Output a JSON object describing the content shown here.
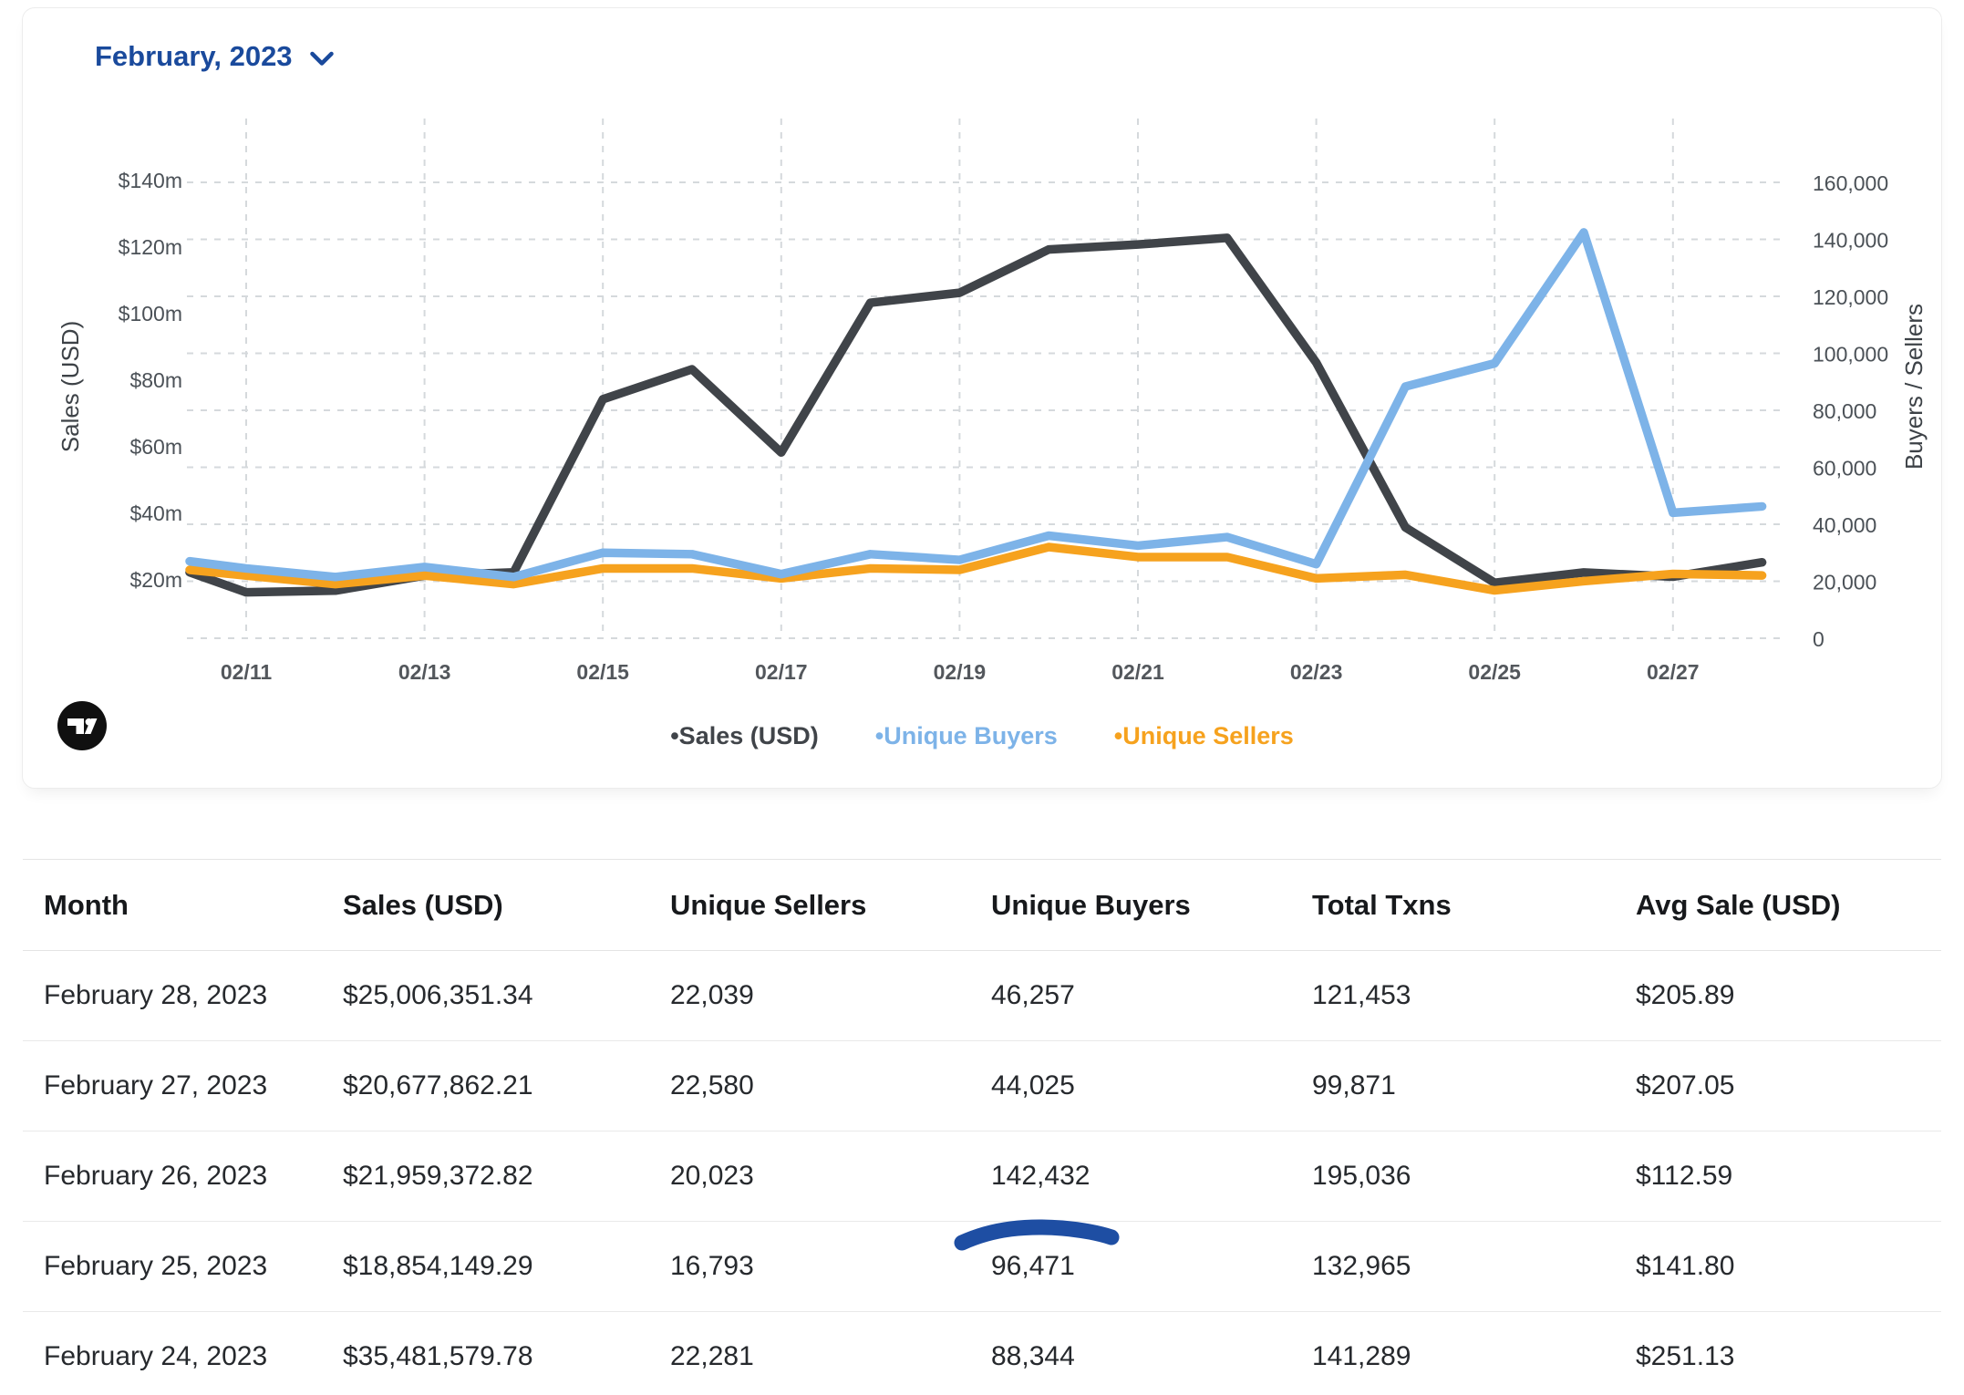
{
  "header": {
    "period_label": "February, 2023"
  },
  "chart_data": {
    "type": "line",
    "title": "February, 2023",
    "grid": "dashed",
    "legend_position": "bottom",
    "categories": [
      "02/10",
      "02/11",
      "02/12",
      "02/13",
      "02/14",
      "02/15",
      "02/16",
      "02/17",
      "02/18",
      "02/19",
      "02/20",
      "02/21",
      "02/22",
      "02/23",
      "02/24",
      "02/25",
      "02/26",
      "02/27",
      "02/28"
    ],
    "x_tick_indices": [
      1,
      3,
      5,
      7,
      9,
      11,
      13,
      15,
      17
    ],
    "left_axis": {
      "title": "Sales (USD)",
      "unit": "USD millions",
      "range_m": [
        0,
        155
      ],
      "ticks": [
        {
          "value": 140,
          "label": "$140m"
        },
        {
          "value": 120,
          "label": "$120m"
        },
        {
          "value": 100,
          "label": "$100m"
        },
        {
          "value": 80,
          "label": "$80m"
        },
        {
          "value": 60,
          "label": "$60m"
        },
        {
          "value": 40,
          "label": "$40m"
        },
        {
          "value": 20,
          "label": "$20m"
        }
      ]
    },
    "right_axis": {
      "title": "Buyers / Sellers",
      "range": [
        0,
        160000
      ],
      "ticks": [
        {
          "value": 160000,
          "label": "160,000"
        },
        {
          "value": 140000,
          "label": "140,000"
        },
        {
          "value": 120000,
          "label": "120,000"
        },
        {
          "value": 100000,
          "label": "100,000"
        },
        {
          "value": 80000,
          "label": "80,000"
        },
        {
          "value": 60000,
          "label": "60,000"
        },
        {
          "value": 40000,
          "label": "40,000"
        },
        {
          "value": 20000,
          "label": "20,000"
        },
        {
          "value": 0,
          "label": "0"
        }
      ]
    },
    "series": [
      {
        "id": "sales",
        "name": "Sales (USD)",
        "axis": "left",
        "color": "#404449",
        "z": 0,
        "values": [
          22,
          16,
          16.5,
          21,
          22,
          74,
          83,
          58,
          103,
          106,
          119,
          120.5,
          122.5,
          85,
          35.48,
          18.85,
          21.96,
          20.68,
          25.01
        ]
      },
      {
        "id": "buyers",
        "name": "Unique Buyers",
        "axis": "right",
        "color": "#7db3e8",
        "z": 2,
        "values": [
          27000,
          24500,
          21500,
          25000,
          21500,
          30000,
          29500,
          22500,
          29500,
          27500,
          36000,
          32500,
          35500,
          26000,
          88344,
          96471,
          142432,
          44025,
          46257
        ]
      },
      {
        "id": "sellers",
        "name": "Unique Sellers",
        "axis": "right",
        "color": "#f6a21e",
        "z": 1,
        "values": [
          24000,
          22000,
          19000,
          22000,
          19000,
          24500,
          24500,
          21000,
          24500,
          24000,
          32000,
          28500,
          28500,
          21000,
          22281,
          16793,
          20023,
          22580,
          22039
        ]
      }
    ]
  },
  "logo": {
    "name": "TradingView"
  },
  "table": {
    "columns": [
      "Month",
      "Sales (USD)",
      "Unique Sellers",
      "Unique Buyers",
      "Total Txns",
      "Avg Sale (USD)"
    ],
    "rows": [
      {
        "cells": [
          "February 28, 2023",
          "$25,006,351.34",
          "22,039",
          "46,257",
          "121,453",
          "$205.89"
        ]
      },
      {
        "cells": [
          "February 27, 2023",
          "$20,677,862.21",
          "22,580",
          "44,025",
          "99,871",
          "$207.05"
        ]
      },
      {
        "cells": [
          "February 26, 2023",
          "$21,959,372.82",
          "20,023",
          "142,432",
          "195,036",
          "$112.59"
        ],
        "underline_cell": 3
      },
      {
        "cells": [
          "February 25, 2023",
          "$18,854,149.29",
          "16,793",
          "96,471",
          "132,965",
          "$141.80"
        ]
      },
      {
        "cells": [
          "February 24, 2023",
          "$35,481,579.78",
          "22,281",
          "88,344",
          "141,289",
          "$251.13"
        ]
      }
    ]
  },
  "annotation": {
    "type": "hand-drawn-underline",
    "target": "142,432",
    "color": "#1e4ea3"
  }
}
